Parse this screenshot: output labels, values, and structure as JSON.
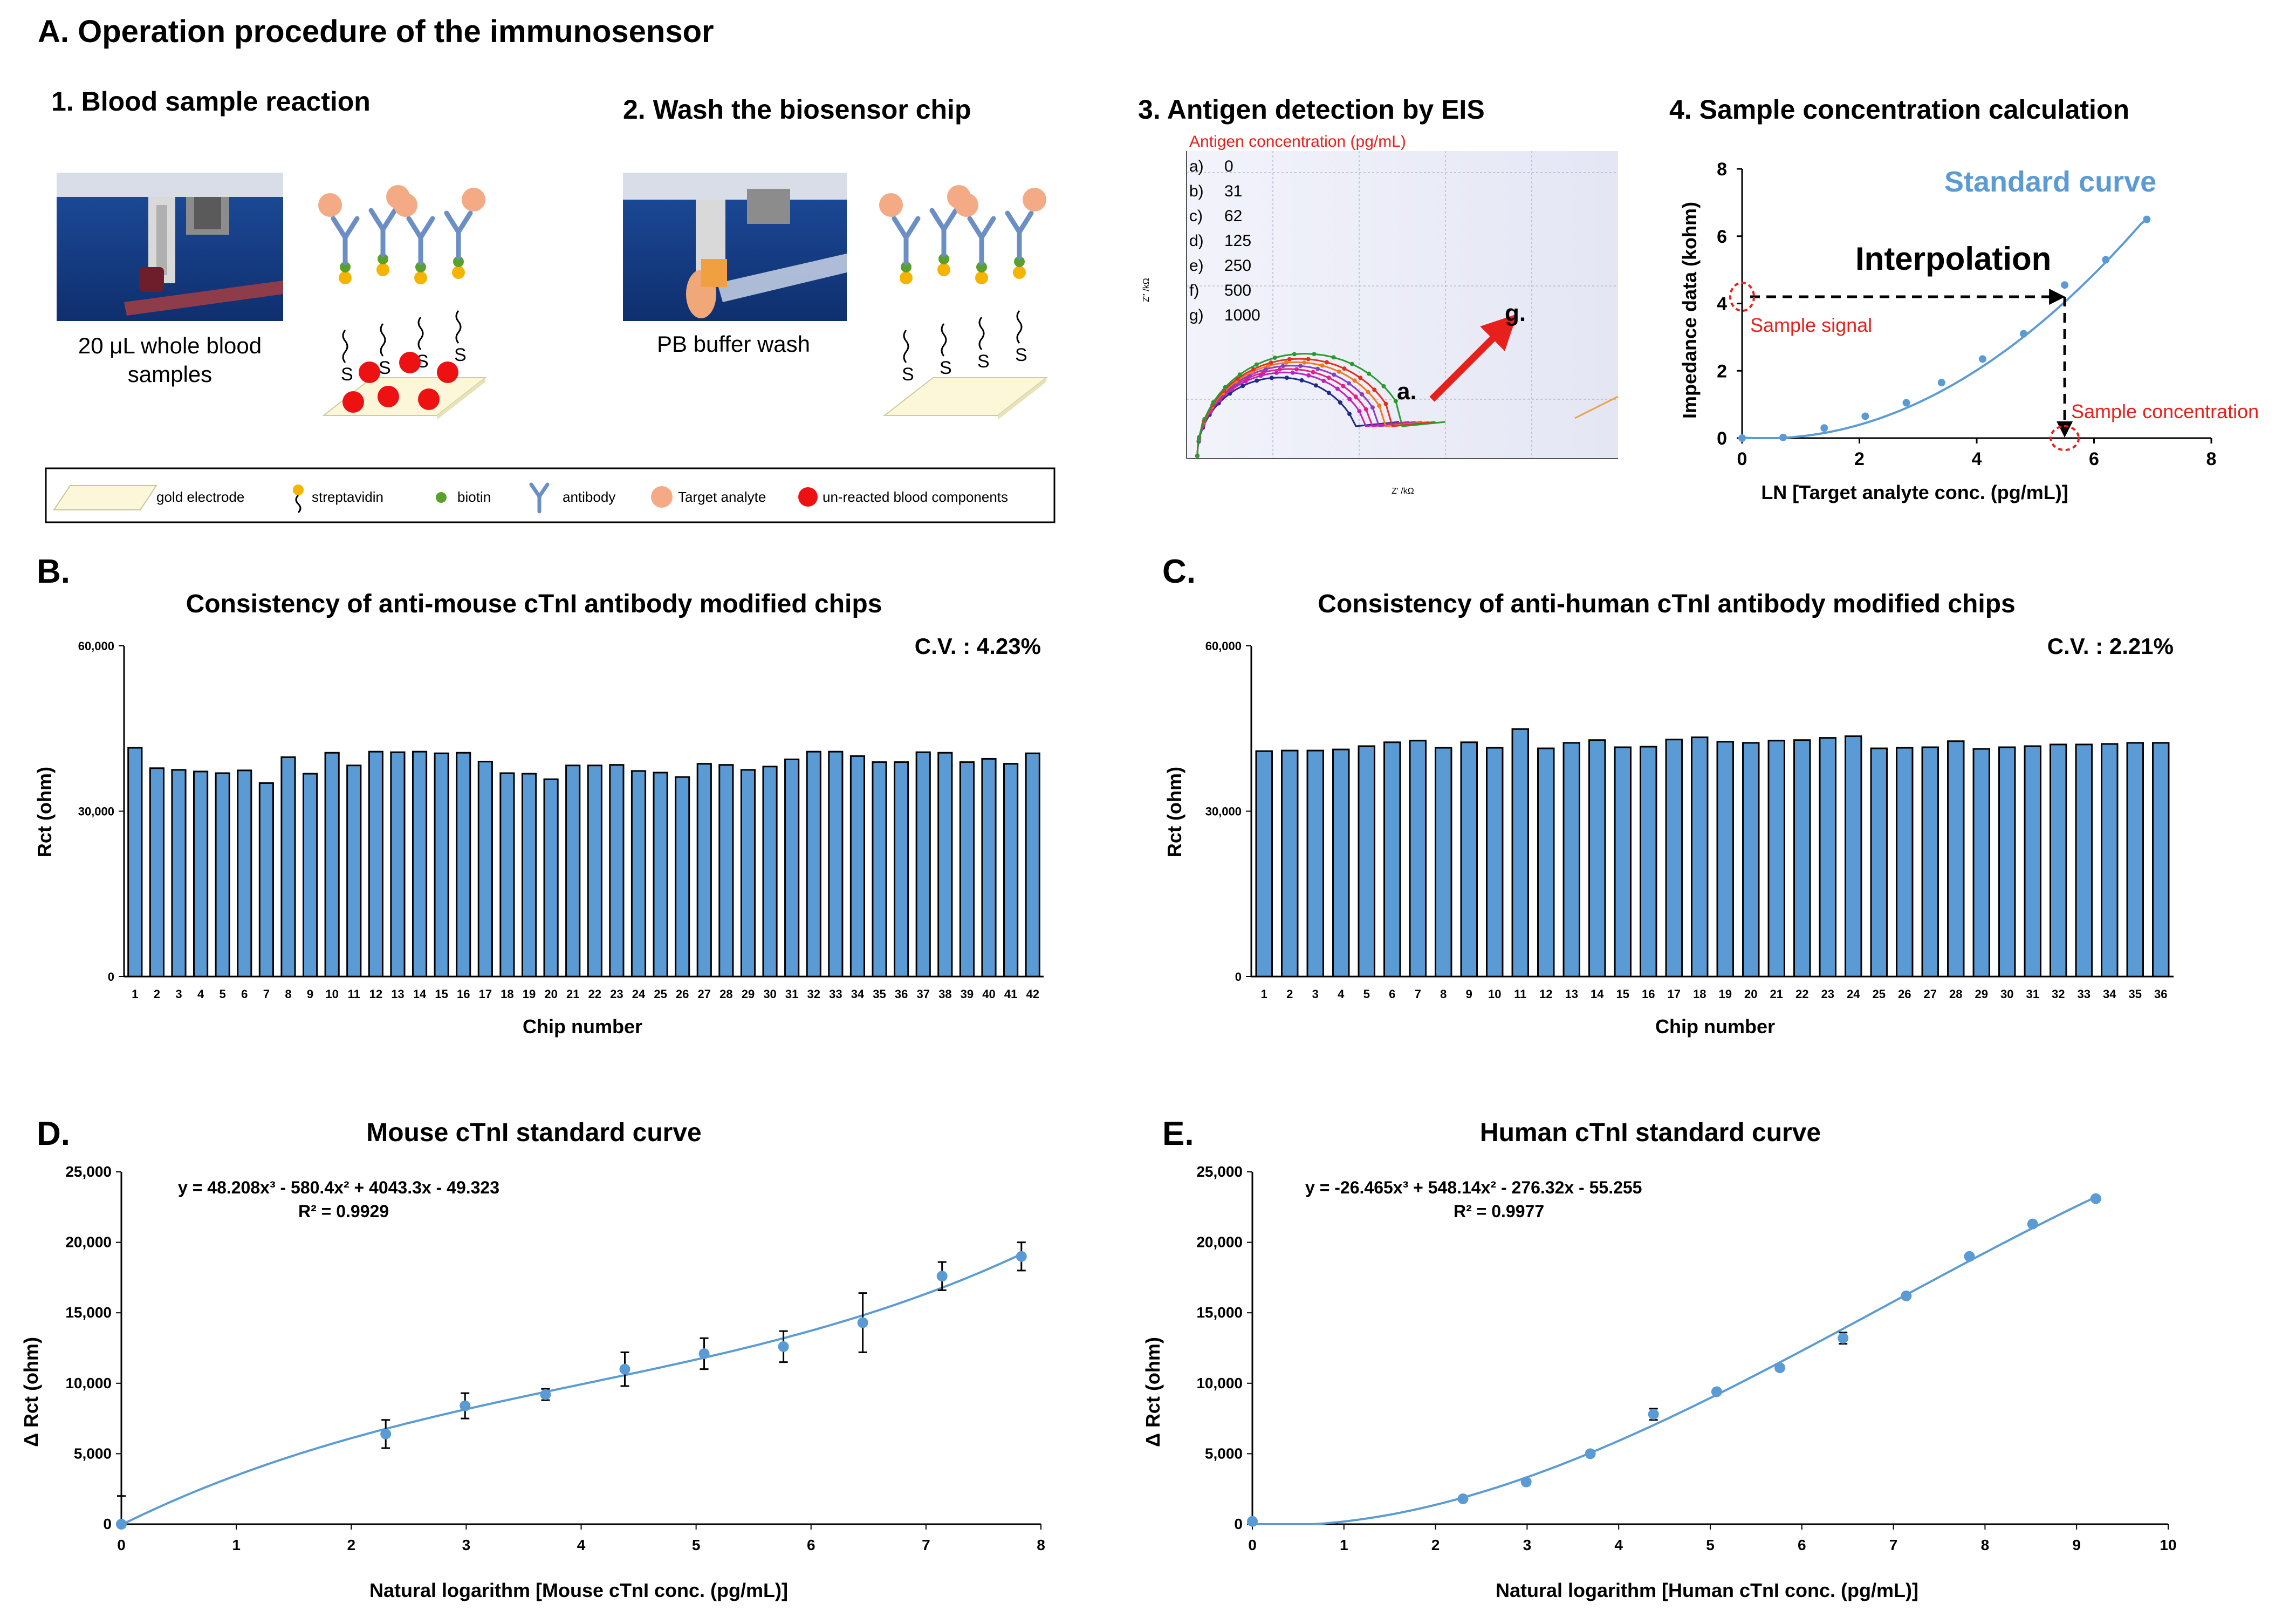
{
  "header": {
    "panel_a_title": "A. Operation procedure of the immunosensor",
    "steps": [
      "1. Blood sample reaction",
      "2. Wash the biosensor chip",
      "3. Antigen detection by EIS",
      "4. Sample concentration calculation"
    ],
    "photo1_caption": "20 μL whole blood samples",
    "photo1_caption_line1": "20 μL whole blood",
    "photo1_caption_line2": "samples",
    "photo2_caption": "PB buffer wash",
    "electrode_letter": "S"
  },
  "legend": {
    "items": [
      "gold electrode",
      "streptavidin",
      "biotin",
      "antibody",
      "Target analyte",
      "un-reacted blood components"
    ]
  },
  "eis": {
    "conc_title": "Antigen concentration (pg/mL)",
    "conc_list": [
      {
        "label": "a)",
        "value": "0"
      },
      {
        "label": "b)",
        "value": "31"
      },
      {
        "label": "c)",
        "value": "62"
      },
      {
        "label": "d)",
        "value": "125"
      },
      {
        "label": "e)",
        "value": "250"
      },
      {
        "label": "f)",
        "value": "500"
      },
      {
        "label": "g)",
        "value": "1000"
      }
    ],
    "arrow_start": "a.",
    "arrow_end": "g.",
    "ylabel": "Z'' /kΩ",
    "xlabel": "Z' /kΩ",
    "colors": [
      "#1f2a8a",
      "#c020c0",
      "#e0208a",
      "#8a3dc4",
      "#f07820",
      "#e03020",
      "#2a9a30"
    ]
  },
  "interp": {
    "ylabel": "Impedance data (kohm)",
    "xlabel": "LN [Target analyte conc. (pg/mL)]",
    "standard_curve_label": "Standard curve",
    "interpolation_label": "Interpolation",
    "sample_signal_label": "Sample signal",
    "sample_conc_label": "Sample concentration",
    "xticks": [
      "0",
      "2",
      "4",
      "6",
      "8"
    ],
    "yticks": [
      "0",
      "2",
      "4",
      "6",
      "8"
    ]
  },
  "panel_b": {
    "letter": "B.",
    "title": "Consistency of anti-mouse cTnI antibody modified chips",
    "cv": "C.V. : 4.23%",
    "ylabel": "Rct (ohm)",
    "xlabel": "Chip number",
    "yticks": [
      "0",
      "30,000",
      "60,000"
    ]
  },
  "panel_c": {
    "letter": "C.",
    "title": "Consistency of anti-human cTnI antibody modified chips",
    "cv": "C.V. : 2.21%",
    "ylabel": "Rct (ohm)",
    "xlabel": "Chip number",
    "yticks": [
      "0",
      "30,000",
      "60,000"
    ]
  },
  "panel_d": {
    "letter": "D.",
    "title": "Mouse cTnI standard curve",
    "equation": "y = 48.208x³ - 580.4x² + 4043.3x - 49.323",
    "r2": "R² = 0.9929",
    "ylabel": "Δ Rct (ohm)",
    "xlabel": "Natural logarithm [Mouse cTnI conc. (pg/mL)]",
    "xticks": [
      "0",
      "1",
      "2",
      "3",
      "4",
      "5",
      "6",
      "7",
      "8"
    ],
    "yticks": [
      "0",
      "5,000",
      "10,000",
      "15,000",
      "20,000",
      "25,000"
    ]
  },
  "panel_e": {
    "letter": "E.",
    "title": "Human cTnI standard curve",
    "equation": "y = -26.465x³ + 548.14x² - 276.32x - 55.255",
    "r2": "R² = 0.9977",
    "ylabel": "Δ Rct (ohm)",
    "xlabel": "Natural logarithm [Human cTnI conc. (pg/mL)]",
    "xticks": [
      "0",
      "1",
      "2",
      "3",
      "4",
      "5",
      "6",
      "7",
      "8",
      "9",
      "10"
    ],
    "yticks": [
      "0",
      "5,000",
      "10,000",
      "15,000",
      "20,000",
      "25,000"
    ]
  },
  "chart_data": [
    {
      "id": "eis_nyquist",
      "type": "line",
      "title": "3. Antigen detection by EIS",
      "series": [
        {
          "name": "0",
          "rct": 23
        },
        {
          "name": "31",
          "rct": 24.5
        },
        {
          "name": "62",
          "rct": 25.5
        },
        {
          "name": "125",
          "rct": 26.5
        },
        {
          "name": "250",
          "rct": 27.5
        },
        {
          "name": "500",
          "rct": 28.5
        },
        {
          "name": "1000",
          "rct": 30
        }
      ]
    },
    {
      "id": "interpolation",
      "type": "line",
      "title": "4. Sample concentration calculation",
      "xlim": [
        0,
        8
      ],
      "ylim": [
        0,
        8
      ],
      "x": [
        0,
        0.7,
        1.4,
        2.1,
        2.8,
        3.4,
        4.1,
        4.8,
        5.5,
        6.2,
        6.9
      ],
      "y": [
        0,
        0.02,
        0.3,
        0.65,
        1.05,
        1.65,
        2.35,
        3.1,
        4.55,
        5.3,
        6.5
      ],
      "sample_point": {
        "x": 5.5,
        "y": 4.2
      }
    },
    {
      "id": "panel_b",
      "type": "bar",
      "title": "Consistency of anti-mouse cTnI antibody modified chips",
      "ylim": [
        0,
        60000
      ],
      "categories": [
        "1",
        "2",
        "3",
        "4",
        "5",
        "6",
        "7",
        "8",
        "9",
        "10",
        "11",
        "12",
        "13",
        "14",
        "15",
        "16",
        "17",
        "18",
        "19",
        "20",
        "21",
        "22",
        "23",
        "24",
        "25",
        "26",
        "27",
        "28",
        "29",
        "30",
        "31",
        "32",
        "33",
        "34",
        "35",
        "36",
        "37",
        "38",
        "39",
        "40",
        "41",
        "42"
      ],
      "values": [
        41500,
        37800,
        37500,
        37200,
        36900,
        37400,
        35100,
        39800,
        36800,
        40600,
        38300,
        40800,
        40700,
        40800,
        40500,
        40600,
        39000,
        36900,
        36800,
        35800,
        38300,
        38300,
        38400,
        37300,
        37000,
        36200,
        38600,
        38400,
        37500,
        38100,
        39400,
        40800,
        40800,
        40000,
        38900,
        38900,
        40700,
        40600,
        38900,
        39500,
        38600,
        40500
      ]
    },
    {
      "id": "panel_c",
      "type": "bar",
      "title": "Consistency of anti-human cTnI antibody modified chips",
      "ylim": [
        0,
        60000
      ],
      "categories": [
        "1",
        "2",
        "3",
        "4",
        "5",
        "6",
        "7",
        "8",
        "9",
        "10",
        "11",
        "12",
        "13",
        "14",
        "15",
        "16",
        "17",
        "18",
        "19",
        "20",
        "21",
        "22",
        "23",
        "24",
        "25",
        "26",
        "27",
        "28",
        "29",
        "30",
        "31",
        "32",
        "33",
        "34",
        "35",
        "36"
      ],
      "values": [
        40900,
        41000,
        41000,
        41200,
        41800,
        42500,
        42800,
        41500,
        42500,
        41500,
        44900,
        41400,
        42400,
        42900,
        41600,
        41700,
        43000,
        43400,
        42600,
        42400,
        42800,
        42900,
        43300,
        43600,
        41400,
        41500,
        41600,
        42700,
        41300,
        41600,
        41800,
        42100,
        42100,
        42200,
        42400,
        42400
      ]
    },
    {
      "id": "panel_d",
      "type": "scatter",
      "title": "Mouse cTnI standard curve",
      "xlim": [
        0,
        8
      ],
      "ylim": [
        0,
        25000
      ],
      "x": [
        0,
        2.3,
        2.99,
        3.69,
        4.38,
        5.07,
        5.76,
        6.45,
        7.14,
        7.83
      ],
      "y": [
        0,
        6400,
        8400,
        9200,
        11000,
        12100,
        12600,
        14300,
        17600,
        19000
      ],
      "error": [
        2000,
        1000,
        900,
        400,
        1200,
        1100,
        1100,
        2100,
        1000,
        1000
      ],
      "fit": [
        48.208,
        -580.4,
        4043.3,
        -49.323
      ]
    },
    {
      "id": "panel_e",
      "type": "scatter",
      "title": "Human cTnI standard curve",
      "xlim": [
        0,
        10
      ],
      "ylim": [
        0,
        25000
      ],
      "x": [
        0,
        2.3,
        2.99,
        3.69,
        4.38,
        5.07,
        5.76,
        6.45,
        7.14,
        7.83,
        8.52,
        9.21
      ],
      "y": [
        200,
        1800,
        3000,
        5000,
        7800,
        9400,
        11100,
        13200,
        16200,
        19000,
        21300,
        23100
      ],
      "error": [
        150,
        150,
        150,
        150,
        400,
        150,
        200,
        400,
        150,
        150,
        150,
        150
      ],
      "fit": [
        -26.465,
        548.14,
        -276.32,
        -55.255
      ]
    }
  ]
}
